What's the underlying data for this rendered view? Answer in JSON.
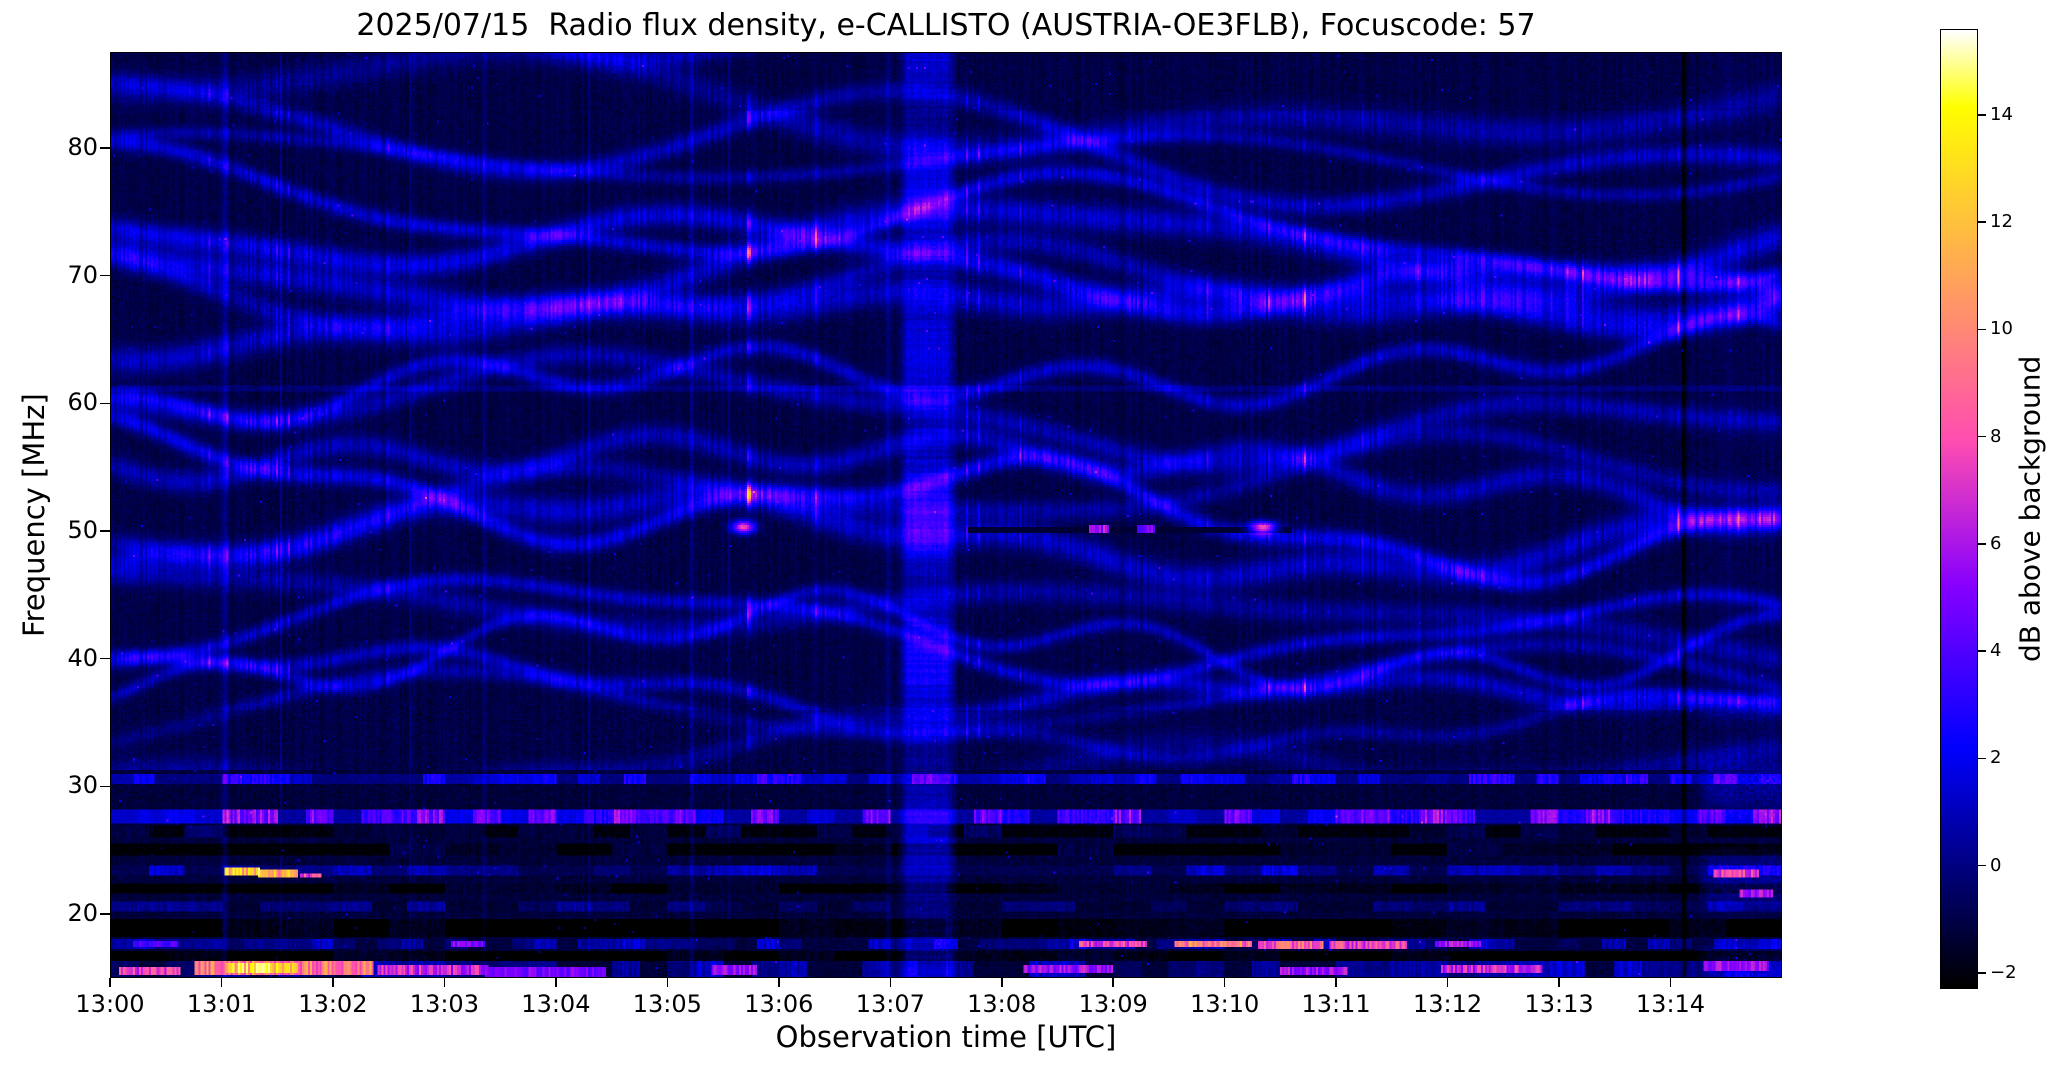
{
  "chart_data": {
    "type": "heatmap",
    "title": "2025/07/15  Radio flux density, e-CALLISTO (AUSTRIA-OE3FLB), Focuscode: 57",
    "xlabel": "Observation time [UTC]",
    "ylabel": "Frequency [MHz]",
    "x_range": [
      0,
      15
    ],
    "x_unit": "minutes after 13:00 UTC",
    "x_ticks": [
      {
        "minute": 0,
        "label": "13:00"
      },
      {
        "minute": 1,
        "label": "13:01"
      },
      {
        "minute": 2,
        "label": "13:02"
      },
      {
        "minute": 3,
        "label": "13:03"
      },
      {
        "minute": 4,
        "label": "13:04"
      },
      {
        "minute": 5,
        "label": "13:05"
      },
      {
        "minute": 6,
        "label": "13:06"
      },
      {
        "minute": 7,
        "label": "13:07"
      },
      {
        "minute": 8,
        "label": "13:08"
      },
      {
        "minute": 9,
        "label": "13:09"
      },
      {
        "minute": 10,
        "label": "13:10"
      },
      {
        "minute": 11,
        "label": "13:11"
      },
      {
        "minute": 12,
        "label": "13:12"
      },
      {
        "minute": 13,
        "label": "13:13"
      },
      {
        "minute": 14,
        "label": "13:14"
      }
    ],
    "y_range_mhz": [
      15.0,
      87.5
    ],
    "y_ticks": [
      {
        "mhz": 20,
        "label": "20"
      },
      {
        "mhz": 30,
        "label": "30"
      },
      {
        "mhz": 40,
        "label": "40"
      },
      {
        "mhz": 50,
        "label": "50"
      },
      {
        "mhz": 60,
        "label": "60"
      },
      {
        "mhz": 70,
        "label": "70"
      },
      {
        "mhz": 80,
        "label": "80"
      }
    ],
    "colorbar": {
      "label": "dB above background",
      "vmin": -2.3,
      "vmax": 15.6,
      "colormap": "gnuplot2",
      "ticks": [
        {
          "value": -2,
          "label": "−2"
        },
        {
          "value": 0,
          "label": "0"
        },
        {
          "value": 2,
          "label": "2"
        },
        {
          "value": 4,
          "label": "4"
        },
        {
          "value": 6,
          "label": "6"
        },
        {
          "value": 8,
          "label": "8"
        },
        {
          "value": 10,
          "label": "10"
        },
        {
          "value": 12,
          "label": "12"
        },
        {
          "value": 14,
          "label": "14"
        }
      ]
    },
    "features": {
      "seed": 20250715,
      "background_db": -1.05,
      "noise_db": 0.5,
      "ionospheric_ridges": {
        "count": 26,
        "f_start_mhz": 17.0,
        "spacing_mhz": 2.85,
        "typical_db": 2.0,
        "fade_below_mhz": 32
      },
      "vertical_band": {
        "t0": 7.12,
        "t1": 7.55,
        "db": 2.4
      },
      "vertical_lines": [
        {
          "t": 1.02,
          "w": 0.025,
          "db": 1.5
        },
        {
          "t": 3.35,
          "w": 0.015,
          "db": 0.7
        },
        {
          "t": 5.22,
          "w": 0.02,
          "db": 1.2
        },
        {
          "t": 6.98,
          "w": 0.02,
          "db": 1.0
        },
        {
          "t": 14.13,
          "w": 0.02,
          "db": -1.8
        }
      ],
      "right_edge_enhancement": {
        "t_start": 14.22,
        "f_max_mhz": 36,
        "db": 1.9
      },
      "persistent_line": {
        "f_mhz": 61.2,
        "half_width_mhz": 0.28,
        "db": 0.8
      },
      "quiet_line_50mhz": {
        "f_mhz": 50.05,
        "t0": 7.7,
        "t1": 10.6,
        "half_width_mhz": 0.2,
        "level_db": -1.4
      },
      "rfi_bands": [
        {
          "f": [
            30.1,
            30.9
          ],
          "base_db": 0.4,
          "seg_per_min": 5,
          "var_db": 3.2,
          "gap": 0.38
        },
        {
          "f": [
            27.1,
            28.2
          ],
          "base_db": 1.0,
          "seg_per_min": 4,
          "var_db": 4.6,
          "gap": 0.22
        },
        {
          "f": [
            26.0,
            26.9
          ],
          "base_db": -1.6,
          "seg_per_min": 3,
          "var_db": 1.2,
          "gap": 0.55
        },
        {
          "f": [
            24.6,
            25.4
          ],
          "base_db": -1.8,
          "seg_per_min": 2,
          "var_db": 0.9,
          "gap": 0.6
        },
        {
          "f": [
            22.9,
            23.7
          ],
          "base_db": -0.4,
          "seg_per_min": 3,
          "var_db": 2.4,
          "gap": 0.4
        },
        {
          "f": [
            21.6,
            22.4
          ],
          "base_db": -1.9,
          "seg_per_min": 2,
          "var_db": 0.7,
          "gap": 0.55
        },
        {
          "f": [
            20.2,
            21.0
          ],
          "base_db": -0.9,
          "seg_per_min": 3,
          "var_db": 1.5,
          "gap": 0.45
        },
        {
          "f": [
            18.1,
            19.6
          ],
          "base_db": -2.1,
          "seg_per_min": 2,
          "var_db": 0.5,
          "gap": 0.7
        },
        {
          "f": [
            17.2,
            17.95
          ],
          "base_db": -0.7,
          "seg_per_min": 5,
          "var_db": 2.6,
          "gap": 0.4
        },
        {
          "f": [
            16.3,
            17.1
          ],
          "base_db": -2.0,
          "seg_per_min": 2,
          "var_db": 0.6,
          "gap": 0.6
        },
        {
          "f": [
            14.8,
            16.2
          ],
          "base_db": -0.8,
          "seg_per_min": 4,
          "var_db": 2.4,
          "gap": 0.35
        }
      ],
      "hot_spots": [
        {
          "t": 1.18,
          "f": 23.3,
          "db": 13,
          "tw": 0.16,
          "fw": 0.28,
          "shape": "dash"
        },
        {
          "t": 1.5,
          "f": 23.1,
          "db": 12,
          "tw": 0.18,
          "fw": 0.26,
          "shape": "dash"
        },
        {
          "t": 1.8,
          "f": 22.95,
          "db": 8,
          "tw": 0.1,
          "fw": 0.2,
          "shape": "dash"
        },
        {
          "t": 0.35,
          "f": 15.5,
          "db": 8,
          "tw": 0.28,
          "fw": 0.35,
          "shape": "dash"
        },
        {
          "t": 1.55,
          "f": 15.7,
          "db": 10,
          "tw": 0.8,
          "fw": 0.5,
          "shape": "dash"
        },
        {
          "t": 1.35,
          "f": 15.75,
          "db": 13,
          "tw": 0.32,
          "fw": 0.4,
          "shape": "dash"
        },
        {
          "t": 2.9,
          "f": 15.5,
          "db": 7,
          "tw": 0.5,
          "fw": 0.4,
          "shape": "dash"
        },
        {
          "t": 3.9,
          "f": 15.45,
          "db": 5,
          "tw": 0.55,
          "fw": 0.4,
          "shape": "dash"
        },
        {
          "t": 5.6,
          "f": 15.55,
          "db": 6,
          "tw": 0.2,
          "fw": 0.35,
          "shape": "dash"
        },
        {
          "t": 8.6,
          "f": 15.6,
          "db": 6,
          "tw": 0.4,
          "fw": 0.35,
          "shape": "dash"
        },
        {
          "t": 10.8,
          "f": 15.5,
          "db": 6,
          "tw": 0.3,
          "fw": 0.35,
          "shape": "dash"
        },
        {
          "t": 12.4,
          "f": 15.6,
          "db": 7,
          "tw": 0.45,
          "fw": 0.35,
          "shape": "dash"
        },
        {
          "t": 14.6,
          "f": 15.8,
          "db": 6,
          "tw": 0.3,
          "fw": 0.4,
          "shape": "dash"
        },
        {
          "t": 0.4,
          "f": 17.6,
          "db": 4,
          "tw": 0.2,
          "fw": 0.25,
          "shape": "dash"
        },
        {
          "t": 3.2,
          "f": 17.6,
          "db": 5,
          "tw": 0.15,
          "fw": 0.25,
          "shape": "dash"
        },
        {
          "t": 9.0,
          "f": 17.55,
          "db": 8,
          "tw": 0.3,
          "fw": 0.25,
          "shape": "dash"
        },
        {
          "t": 9.9,
          "f": 17.55,
          "db": 10,
          "tw": 0.35,
          "fw": 0.25,
          "shape": "dash"
        },
        {
          "t": 10.6,
          "f": 17.5,
          "db": 9,
          "tw": 0.3,
          "fw": 0.25,
          "shape": "dash"
        },
        {
          "t": 11.3,
          "f": 17.5,
          "db": 8,
          "tw": 0.35,
          "fw": 0.25,
          "shape": "dash"
        },
        {
          "t": 12.1,
          "f": 17.6,
          "db": 6,
          "tw": 0.2,
          "fw": 0.25,
          "shape": "dash"
        },
        {
          "t": 14.6,
          "f": 23.1,
          "db": 8,
          "tw": 0.2,
          "fw": 0.3,
          "shape": "dash"
        },
        {
          "t": 14.78,
          "f": 21.5,
          "db": 6,
          "tw": 0.15,
          "fw": 0.3,
          "shape": "dash"
        },
        {
          "t": 5.68,
          "f": 50.3,
          "db": 9,
          "tw": 0.07,
          "fw": 0.35,
          "shape": "gauss"
        },
        {
          "t": 8.88,
          "f": 50.15,
          "db": 6,
          "tw": 0.09,
          "fw": 0.25,
          "shape": "dash"
        },
        {
          "t": 9.3,
          "f": 50.15,
          "db": 5,
          "tw": 0.08,
          "fw": 0.25,
          "shape": "dash"
        },
        {
          "t": 10.35,
          "f": 50.25,
          "db": 9,
          "tw": 0.08,
          "fw": 0.35,
          "shape": "gauss"
        }
      ]
    }
  }
}
